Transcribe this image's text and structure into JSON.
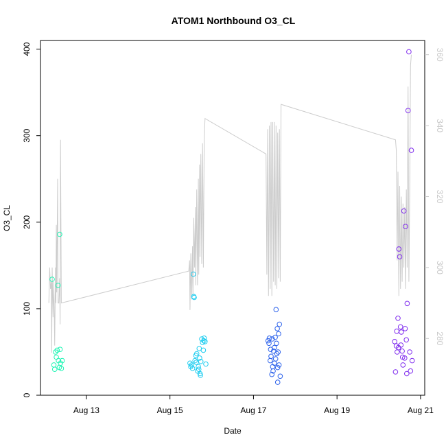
{
  "chart_data": {
    "type": "scatter",
    "title": "ATOM1 Northbound O3_CL",
    "xlabel": "Date",
    "ylabel": "O3_CL",
    "x_ticks": [
      {
        "label": "Aug 13",
        "day": 13
      },
      {
        "label": "Aug 15",
        "day": 15
      },
      {
        "label": "Aug 17",
        "day": 17
      },
      {
        "label": "Aug 19",
        "day": 19
      },
      {
        "label": "Aug 21",
        "day": 21
      }
    ],
    "xlim_days": [
      11.9,
      21.1
    ],
    "ylim": [
      0,
      410
    ],
    "y_ticks": [
      0,
      100,
      200,
      300,
      400
    ],
    "y2lim": [
      264,
      364
    ],
    "y2_ticks": [
      280,
      300,
      320,
      340,
      360
    ],
    "y2_color": "#c8c8c8",
    "line_color": "#cccccc",
    "series": [
      {
        "color": "#1ef5b4",
        "points": [
          [
            12.18,
            134
          ],
          [
            12.22,
            35
          ],
          [
            12.24,
            30
          ],
          [
            12.26,
            50
          ],
          [
            12.28,
            44
          ],
          [
            12.3,
            52
          ],
          [
            12.32,
            127
          ],
          [
            12.33,
            40
          ],
          [
            12.35,
            32
          ],
          [
            12.36,
            186
          ],
          [
            12.37,
            53
          ],
          [
            12.38,
            37
          ],
          [
            12.4,
            31
          ],
          [
            12.42,
            40
          ]
        ]
      },
      {
        "color": "#1ecdf0",
        "points": [
          [
            15.48,
            37
          ],
          [
            15.5,
            33
          ],
          [
            15.52,
            35
          ],
          [
            15.54,
            31
          ],
          [
            15.56,
            140
          ],
          [
            15.57,
            114
          ],
          [
            15.58,
            113
          ],
          [
            15.6,
            40
          ],
          [
            15.62,
            46
          ],
          [
            15.64,
            48
          ],
          [
            15.66,
            28
          ],
          [
            15.68,
            33
          ],
          [
            15.7,
            54
          ],
          [
            15.71,
            43
          ],
          [
            15.72,
            25
          ],
          [
            15.74,
            39
          ],
          [
            15.76,
            65
          ],
          [
            15.78,
            61
          ],
          [
            15.8,
            52
          ],
          [
            15.81,
            63
          ],
          [
            15.82,
            66
          ],
          [
            15.84,
            62
          ],
          [
            15.86,
            36
          ],
          [
            15.73,
            23
          ],
          [
            15.69,
            30
          ],
          [
            15.63,
            38
          ]
        ]
      },
      {
        "color": "#2a60eb",
        "points": [
          [
            17.35,
            63
          ],
          [
            17.37,
            60
          ],
          [
            17.38,
            66
          ],
          [
            17.4,
            40
          ],
          [
            17.41,
            53
          ],
          [
            17.42,
            45
          ],
          [
            17.44,
            24
          ],
          [
            17.46,
            33
          ],
          [
            17.48,
            51
          ],
          [
            17.5,
            37
          ],
          [
            17.52,
            67
          ],
          [
            17.54,
            99
          ],
          [
            17.56,
            48
          ],
          [
            17.58,
            32
          ],
          [
            17.6,
            71
          ],
          [
            17.62,
            82
          ],
          [
            17.64,
            22
          ],
          [
            17.58,
            15
          ],
          [
            17.5,
            55
          ],
          [
            17.45,
            65
          ],
          [
            17.53,
            42
          ],
          [
            17.57,
            77
          ],
          [
            17.61,
            35
          ],
          [
            17.55,
            60
          ],
          [
            17.47,
            28
          ],
          [
            17.59,
            50
          ]
        ]
      },
      {
        "color": "#7f2bee",
        "points": [
          [
            20.38,
            62
          ],
          [
            20.4,
            27
          ],
          [
            20.42,
            57
          ],
          [
            20.44,
            50
          ],
          [
            20.46,
            89
          ],
          [
            20.48,
            169
          ],
          [
            20.5,
            160
          ],
          [
            20.52,
            79
          ],
          [
            20.54,
            73
          ],
          [
            20.56,
            51
          ],
          [
            20.58,
            35
          ],
          [
            20.6,
            213
          ],
          [
            20.62,
            43
          ],
          [
            20.64,
            195
          ],
          [
            20.66,
            64
          ],
          [
            20.68,
            106
          ],
          [
            20.7,
            329
          ],
          [
            20.72,
            397
          ],
          [
            20.74,
            50
          ],
          [
            20.76,
            28
          ],
          [
            20.78,
            283
          ],
          [
            20.8,
            40
          ],
          [
            20.67,
            25
          ],
          [
            20.63,
            77
          ],
          [
            20.53,
            58
          ],
          [
            20.57,
            44
          ],
          [
            20.47,
            55
          ],
          [
            20.43,
            74
          ]
        ]
      }
    ],
    "line_series": [
      [
        12.1,
        290
      ],
      [
        12.12,
        300
      ],
      [
        12.14,
        294
      ],
      [
        12.16,
        296
      ],
      [
        12.17,
        276
      ],
      [
        12.18,
        300
      ],
      [
        12.2,
        286
      ],
      [
        12.22,
        296
      ],
      [
        12.24,
        278
      ],
      [
        12.26,
        300
      ],
      [
        12.27,
        290
      ],
      [
        12.28,
        312
      ],
      [
        12.29,
        293
      ],
      [
        12.31,
        325
      ],
      [
        12.32,
        290
      ],
      [
        12.34,
        290
      ],
      [
        12.36,
        297
      ],
      [
        12.37,
        284
      ],
      [
        12.38,
        336
      ],
      [
        12.4,
        290
      ],
      [
        15.45,
        299
      ],
      [
        15.47,
        302
      ],
      [
        15.48,
        288
      ],
      [
        15.5,
        304
      ],
      [
        15.52,
        291
      ],
      [
        15.54,
        306
      ],
      [
        15.55,
        292
      ],
      [
        15.57,
        314
      ],
      [
        15.59,
        300
      ],
      [
        15.61,
        317
      ],
      [
        15.62,
        295
      ],
      [
        15.64,
        322
      ],
      [
        15.66,
        295
      ],
      [
        15.68,
        325
      ],
      [
        15.69,
        298
      ],
      [
        15.71,
        329
      ],
      [
        15.72,
        303
      ],
      [
        15.74,
        332
      ],
      [
        15.76,
        301
      ],
      [
        15.78,
        335
      ],
      [
        15.8,
        300
      ],
      [
        15.82,
        336
      ],
      [
        15.84,
        342
      ],
      [
        17.3,
        332
      ],
      [
        17.32,
        298
      ],
      [
        17.34,
        339
      ],
      [
        17.36,
        292
      ],
      [
        17.38,
        340
      ],
      [
        17.4,
        294
      ],
      [
        17.42,
        341
      ],
      [
        17.44,
        292
      ],
      [
        17.46,
        341
      ],
      [
        17.48,
        296
      ],
      [
        17.5,
        341
      ],
      [
        17.52,
        295
      ],
      [
        17.54,
        340
      ],
      [
        17.56,
        294
      ],
      [
        17.58,
        338
      ],
      [
        17.6,
        297
      ],
      [
        17.62,
        339
      ],
      [
        17.64,
        296
      ],
      [
        17.66,
        346
      ],
      [
        20.4,
        336
      ],
      [
        20.42,
        333
      ],
      [
        20.44,
        302
      ],
      [
        20.46,
        327
      ],
      [
        20.48,
        292
      ],
      [
        20.5,
        323
      ],
      [
        20.52,
        294
      ],
      [
        20.54,
        320
      ],
      [
        20.56,
        296
      ],
      [
        20.58,
        318
      ],
      [
        20.6,
        300
      ],
      [
        20.62,
        317
      ],
      [
        20.64,
        294
      ],
      [
        20.66,
        322
      ],
      [
        20.68,
        300
      ],
      [
        20.7,
        351
      ],
      [
        20.72,
        296
      ],
      [
        20.74,
        321
      ],
      [
        20.76,
        357
      ],
      [
        20.78,
        360
      ]
    ],
    "grid": false,
    "legend": "none"
  }
}
